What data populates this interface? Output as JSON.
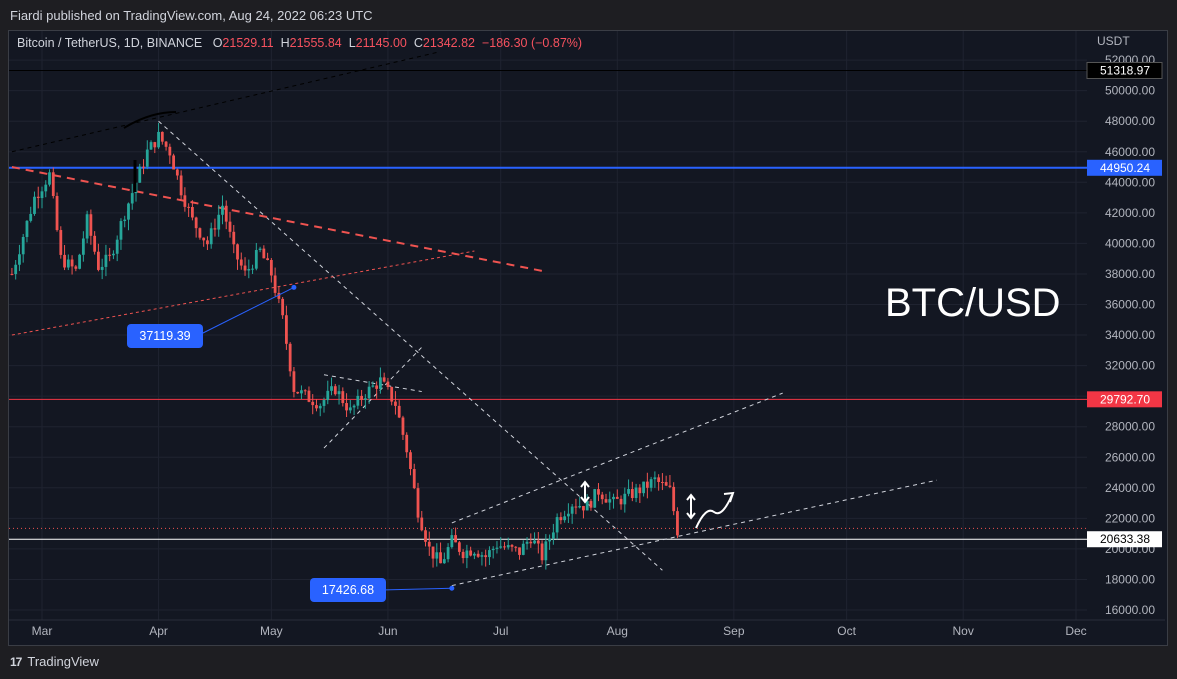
{
  "header": {
    "publisher_line": "Fiardi published on TradingView.com, Aug 24, 2022 06:23 UTC"
  },
  "legend": {
    "symbol": "Bitcoin / TetherUS, 1D, BINANCE",
    "open_label": "O",
    "open": "21529.11",
    "high_label": "H",
    "high": "21555.84",
    "low_label": "L",
    "low": "21145.00",
    "close_label": "C",
    "close": "21342.82",
    "change": "−186.30 (−0.87%)"
  },
  "footer": {
    "brand": "TradingView",
    "logo": "tradingview-logo"
  },
  "colors": {
    "up": "#26a69a",
    "down": "#ef5350",
    "blue": "#2962ff",
    "red_line": "#f23645",
    "background": "#131722",
    "grid": "#1f2330"
  },
  "chart_data": {
    "type": "candlestick",
    "title": "BTC/USD",
    "price_axis_unit": "USDT",
    "ylim": [
      15000,
      53000
    ],
    "y_ticks": [
      "16000.00",
      "18000.00",
      "20000.00",
      "22000.00",
      "24000.00",
      "26000.00",
      "28000.00",
      "30000.00",
      "32000.00",
      "34000.00",
      "36000.00",
      "38000.00",
      "40000.00",
      "42000.00",
      "44000.00",
      "46000.00",
      "48000.00",
      "50000.00",
      "52000.00"
    ],
    "x_ticks": [
      "Mar",
      "Apr",
      "May",
      "Jun",
      "Jul",
      "Aug",
      "Sep",
      "Oct",
      "Nov",
      "Dec"
    ],
    "x_tick_days": [
      0,
      31,
      61,
      92,
      122,
      153,
      184,
      214,
      245,
      275
    ],
    "x_range_days": [
      -8,
      282
    ],
    "close_path": [
      [
        -8,
        38000
      ],
      [
        -5,
        40500
      ],
      [
        -2,
        43000
      ],
      [
        2,
        44500
      ],
      [
        5,
        39000
      ],
      [
        9,
        38200
      ],
      [
        12,
        41500
      ],
      [
        15,
        38500
      ],
      [
        18,
        39000
      ],
      [
        22,
        42000
      ],
      [
        25,
        44000
      ],
      [
        28,
        46000
      ],
      [
        31,
        47000
      ],
      [
        34,
        46000
      ],
      [
        37,
        43500
      ],
      [
        40,
        41500
      ],
      [
        44,
        40000
      ],
      [
        48,
        42500
      ],
      [
        51,
        39500
      ],
      [
        54,
        38000
      ],
      [
        58,
        39500
      ],
      [
        61,
        38000
      ],
      [
        64,
        35000
      ],
      [
        67,
        30500
      ],
      [
        70,
        30000
      ],
      [
        74,
        29500
      ],
      [
        78,
        30500
      ],
      [
        82,
        29000
      ],
      [
        86,
        30200
      ],
      [
        90,
        31000
      ],
      [
        94,
        29500
      ],
      [
        97,
        26500
      ],
      [
        100,
        22500
      ],
      [
        103,
        20000
      ],
      [
        106,
        19000
      ],
      [
        109,
        20500
      ],
      [
        112,
        19800
      ],
      [
        115,
        20000
      ],
      [
        118,
        19500
      ],
      [
        121,
        20300
      ],
      [
        124,
        20000
      ],
      [
        127,
        19800
      ],
      [
        130,
        20800
      ],
      [
        133,
        19500
      ],
      [
        137,
        22000
      ],
      [
        141,
        23000
      ],
      [
        145,
        22800
      ],
      [
        148,
        23800
      ],
      [
        152,
        23000
      ],
      [
        156,
        23500
      ],
      [
        160,
        24000
      ],
      [
        163,
        24500
      ],
      [
        167,
        23800
      ],
      [
        169,
        21200
      ]
    ],
    "horizontal_levels": [
      {
        "label": "51318.97",
        "price": 51318.97,
        "color": "#000000"
      },
      {
        "label": "44950.24",
        "price": 44950.24,
        "color": "#2962ff"
      },
      {
        "label": "29792.70",
        "price": 29792.7,
        "color": "#f23645"
      },
      {
        "label": "20633.38",
        "price": 20633.38,
        "color": "#ffffff"
      }
    ],
    "callouts": [
      {
        "label": "37119.39",
        "price": 37119.39,
        "day": 67
      },
      {
        "label": "17426.68",
        "price": 17426.68,
        "day": 109
      }
    ]
  }
}
